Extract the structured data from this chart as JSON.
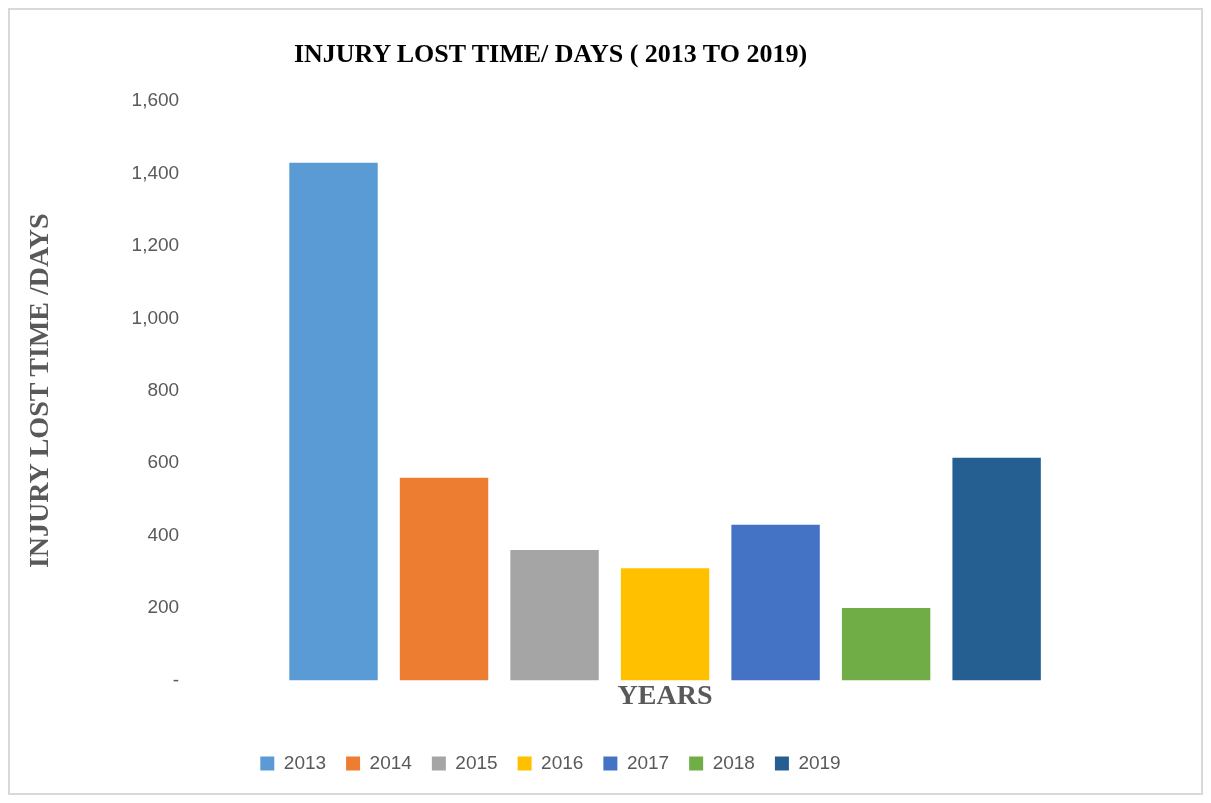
{
  "chart_data": {
    "type": "bar",
    "title": "INJURY LOST TIME/ DAYS ( 2013 TO 2019)",
    "xlabel": "YEARS",
    "ylabel": "INJURY LOST TIME /DAYS",
    "categories": [
      null
    ],
    "series": [
      {
        "name": "2013",
        "color": "#5b9bd5",
        "values": [
          1430
        ]
      },
      {
        "name": "2014",
        "color": "#ed7d31",
        "values": [
          560
        ]
      },
      {
        "name": "2015",
        "color": "#a5a5a5",
        "values": [
          360
        ]
      },
      {
        "name": "2016",
        "color": "#ffc000",
        "values": [
          310
        ]
      },
      {
        "name": "2017",
        "color": "#4472c4",
        "values": [
          430
        ]
      },
      {
        "name": "2018",
        "color": "#70ad47",
        "values": [
          200
        ]
      },
      {
        "name": "2019",
        "color": "#255e91",
        "values": [
          615
        ]
      }
    ],
    "ylim": [
      0,
      1600
    ],
    "yticks": [
      {
        "value": 0,
        "label": "-"
      },
      {
        "value": 200,
        "label": "200"
      },
      {
        "value": 400,
        "label": "400"
      },
      {
        "value": 600,
        "label": "600"
      },
      {
        "value": 800,
        "label": "800"
      },
      {
        "value": 1000,
        "label": "1,000"
      },
      {
        "value": 1200,
        "label": "1,200"
      },
      {
        "value": 1400,
        "label": "1,400"
      },
      {
        "value": 1600,
        "label": "1,600"
      }
    ],
    "grid": false,
    "legend": "bottom"
  }
}
